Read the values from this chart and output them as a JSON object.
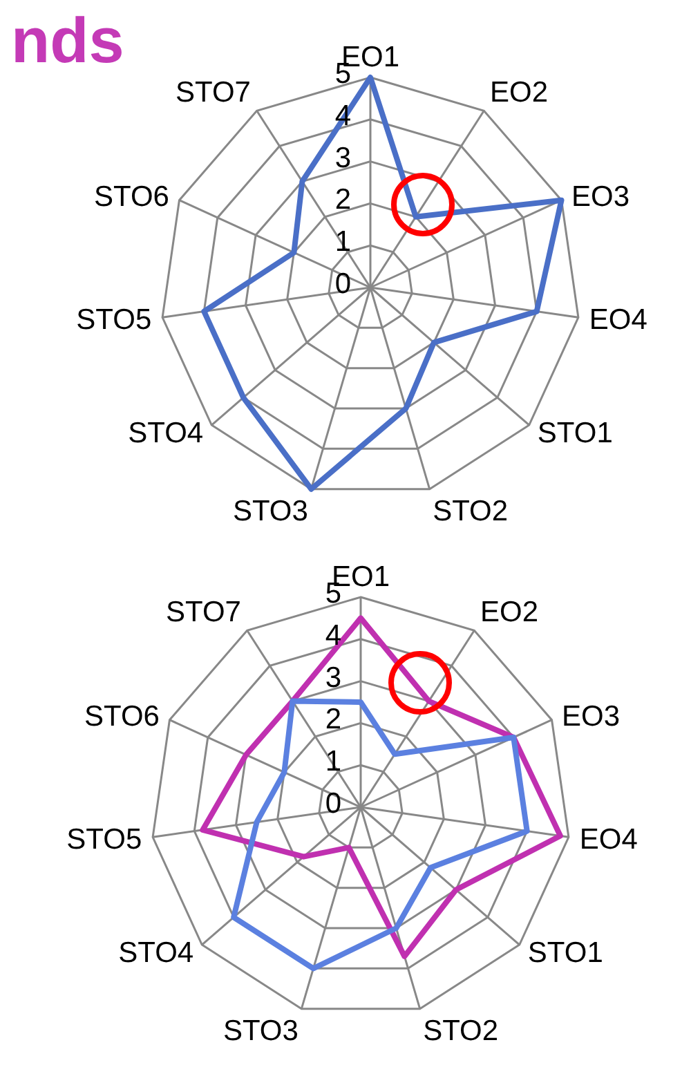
{
  "chart_data": [
    {
      "type": "radar",
      "title": "nds",
      "categories": [
        "EO1",
        "EO2",
        "EO3",
        "EO4",
        "STO1",
        "STO2",
        "STO3",
        "STO4",
        "STO5",
        "STO6",
        "STO7"
      ],
      "ylim": [
        0,
        5
      ],
      "yticks": [
        0,
        1,
        2,
        3,
        4,
        5
      ],
      "grid": true,
      "line_style": "solid",
      "series": [
        {
          "color": "#4a6fc7",
          "values": [
            5,
            2,
            5,
            4,
            2,
            3,
            5,
            4,
            4,
            2,
            3
          ]
        }
      ]
    },
    {
      "type": "radar",
      "categories": [
        "EO1",
        "EO2",
        "EO3",
        "EO4",
        "STO1",
        "STO2",
        "STO3",
        "STO4",
        "STO5",
        "STO6",
        "STO7"
      ],
      "ylim": [
        0,
        5
      ],
      "yticks": [
        0,
        1,
        2,
        3,
        4,
        5
      ],
      "grid": true,
      "line_style": "solid",
      "series": [
        {
          "color": "#c030b0",
          "values": [
            4.5,
            3,
            4,
            4.8,
            3,
            3.7,
            1,
            1.8,
            3.8,
            3,
            3
          ]
        },
        {
          "color": "#5b80e0",
          "values": [
            2.5,
            1.5,
            4,
            4,
            2.2,
            3,
            4,
            4,
            2.5,
            2,
            3
          ]
        }
      ]
    }
  ]
}
